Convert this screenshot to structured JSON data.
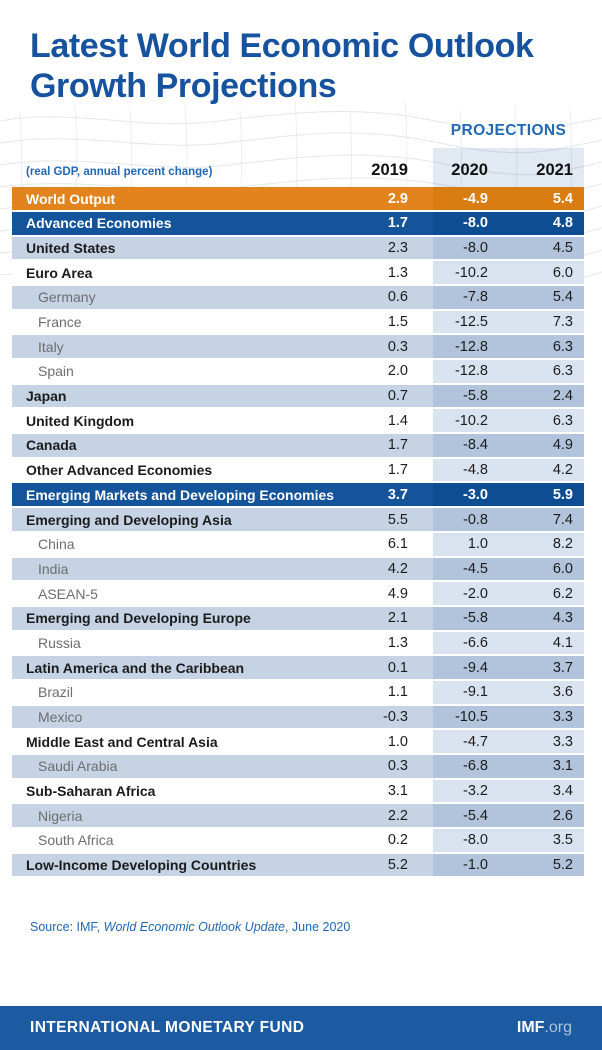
{
  "title": {
    "line1": "Latest World Economic Outlook",
    "line2": "Growth Projections"
  },
  "table": {
    "projections_label": "PROJECTIONS",
    "unit_label": "(real GDP, annual percent change)"
  },
  "chart_data": {
    "type": "table",
    "title": "Latest World Economic Outlook Growth Projections",
    "unit": "(real GDP, annual percent change)",
    "columns": [
      "2019",
      "2020",
      "2021"
    ],
    "projections_columns": [
      "2020",
      "2021"
    ],
    "rows": [
      {
        "label": "World Output",
        "values": [
          "2.9",
          "-4.9",
          "5.4"
        ],
        "variant": "orange",
        "indent": false,
        "bold": true
      },
      {
        "label": "Advanced Economies",
        "values": [
          "1.7",
          "-8.0",
          "4.8"
        ],
        "variant": "blue",
        "indent": false,
        "bold": true
      },
      {
        "label": "United States",
        "values": [
          "2.3",
          "-8.0",
          "4.5"
        ],
        "variant": "light",
        "indent": false,
        "bold": true
      },
      {
        "label": "Euro Area",
        "values": [
          "1.3",
          "-10.2",
          "6.0"
        ],
        "variant": "white",
        "indent": false,
        "bold": true
      },
      {
        "label": "Germany",
        "values": [
          "0.6",
          "-7.8",
          "5.4"
        ],
        "variant": "light",
        "indent": true,
        "bold": false
      },
      {
        "label": "France",
        "values": [
          "1.5",
          "-12.5",
          "7.3"
        ],
        "variant": "white",
        "indent": true,
        "bold": false
      },
      {
        "label": "Italy",
        "values": [
          "0.3",
          "-12.8",
          "6.3"
        ],
        "variant": "light",
        "indent": true,
        "bold": false
      },
      {
        "label": "Spain",
        "values": [
          "2.0",
          "-12.8",
          "6.3"
        ],
        "variant": "white",
        "indent": true,
        "bold": false
      },
      {
        "label": "Japan",
        "values": [
          "0.7",
          "-5.8",
          "2.4"
        ],
        "variant": "light",
        "indent": false,
        "bold": true
      },
      {
        "label": "United Kingdom",
        "values": [
          "1.4",
          "-10.2",
          "6.3"
        ],
        "variant": "white",
        "indent": false,
        "bold": true
      },
      {
        "label": "Canada",
        "values": [
          "1.7",
          "-8.4",
          "4.9"
        ],
        "variant": "light",
        "indent": false,
        "bold": true
      },
      {
        "label": "Other Advanced Economies",
        "values": [
          "1.7",
          "-4.8",
          "4.2"
        ],
        "variant": "white",
        "indent": false,
        "bold": true
      },
      {
        "label": "Emerging Markets and Developing Economies",
        "values": [
          "3.7",
          "-3.0",
          "5.9"
        ],
        "variant": "blue",
        "indent": false,
        "bold": true
      },
      {
        "label": "Emerging and Developing Asia",
        "values": [
          "5.5",
          "-0.8",
          "7.4"
        ],
        "variant": "light",
        "indent": false,
        "bold": true
      },
      {
        "label": "China",
        "values": [
          "6.1",
          "1.0",
          "8.2"
        ],
        "variant": "white",
        "indent": true,
        "bold": false
      },
      {
        "label": "India",
        "values": [
          "4.2",
          "-4.5",
          "6.0"
        ],
        "variant": "light",
        "indent": true,
        "bold": false
      },
      {
        "label": "ASEAN-5",
        "values": [
          "4.9",
          "-2.0",
          "6.2"
        ],
        "variant": "white",
        "indent": true,
        "bold": false
      },
      {
        "label": "Emerging and Developing Europe",
        "values": [
          "2.1",
          "-5.8",
          "4.3"
        ],
        "variant": "light",
        "indent": false,
        "bold": true
      },
      {
        "label": "Russia",
        "values": [
          "1.3",
          "-6.6",
          "4.1"
        ],
        "variant": "white",
        "indent": true,
        "bold": false
      },
      {
        "label": "Latin America and the Caribbean",
        "values": [
          "0.1",
          "-9.4",
          "3.7"
        ],
        "variant": "light",
        "indent": false,
        "bold": true
      },
      {
        "label": "Brazil",
        "values": [
          "1.1",
          "-9.1",
          "3.6"
        ],
        "variant": "white",
        "indent": true,
        "bold": false
      },
      {
        "label": "Mexico",
        "values": [
          "-0.3",
          "-10.5",
          "3.3"
        ],
        "variant": "light",
        "indent": true,
        "bold": false
      },
      {
        "label": "Middle East and Central Asia",
        "values": [
          "1.0",
          "-4.7",
          "3.3"
        ],
        "variant": "white",
        "indent": false,
        "bold": true
      },
      {
        "label": "Saudi Arabia",
        "values": [
          "0.3",
          "-6.8",
          "3.1"
        ],
        "variant": "light",
        "indent": true,
        "bold": false
      },
      {
        "label": "Sub-Saharan Africa",
        "values": [
          "3.1",
          "-3.2",
          "3.4"
        ],
        "variant": "white",
        "indent": false,
        "bold": true
      },
      {
        "label": "Nigeria",
        "values": [
          "2.2",
          "-5.4",
          "2.6"
        ],
        "variant": "light",
        "indent": true,
        "bold": false
      },
      {
        "label": "South Africa",
        "values": [
          "0.2",
          "-8.0",
          "3.5"
        ],
        "variant": "white",
        "indent": true,
        "bold": false
      },
      {
        "label": "Low-Income Developing Countries",
        "values": [
          "5.2",
          "-1.0",
          "5.2"
        ],
        "variant": "light",
        "indent": false,
        "bold": true
      }
    ]
  },
  "source": {
    "prefix": "Source: IMF, ",
    "work": "World Economic Outlook Update",
    "suffix": ", June 2020"
  },
  "footer": {
    "org": "INTERNATIONAL MONETARY FUND",
    "site_bold": "IMF",
    "site_rest": ".org"
  },
  "colors": {
    "title_blue": "#16529E",
    "label_blue": "#2268B3",
    "row_orange": "#E2831D",
    "row_dark_blue": "#14549B",
    "row_light_blue": "#C5D3E5",
    "band_on_white": "#D9E2EF",
    "band_on_light": "#B1C4DC",
    "footer_bar_blue": "#1C5AA2"
  }
}
